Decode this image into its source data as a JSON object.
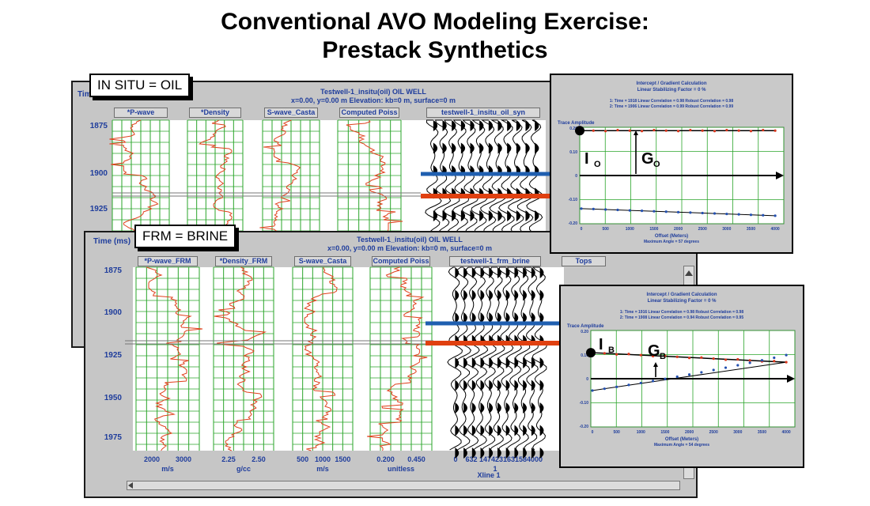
{
  "title": {
    "line1": "Conventional AVO Modeling Exercise:",
    "line2": "Prestack Synthetics"
  },
  "insitu_window": {
    "label": "IN SITU = OIL",
    "time_axis": "Time",
    "header_line1": "Testwell-1_insitu(oil) OIL WELL",
    "header_line2": "x=0.00, y=0.00 m Elevation: kb=0 m, surface=0 m",
    "tracks": [
      "*P-wave",
      "*Density",
      "S-wave_Casta",
      "Computed Poiss",
      "testwell-1_insitu_oil_syn"
    ],
    "ticks": [
      "1875",
      "1900",
      "1925"
    ]
  },
  "frm_window": {
    "label": "FRM = BRINE",
    "time_axis": "Time (ms)",
    "header_line1": "Testwell-1_insitu(oil) OIL WELL",
    "header_line2": "x=0.00, y=0.00 m Elevation: kb=0 m, surface=0 m",
    "tracks": [
      "*P-wave_FRM",
      "*Density_FRM",
      "S-wave_Casta",
      "Computed Poiss",
      "testwell-1_frm_brine",
      "Tops"
    ],
    "ticks": [
      "1875",
      "1900",
      "1925",
      "1950",
      "1975"
    ],
    "bottom_axes": [
      {
        "ticks": [
          "2000",
          "3000"
        ],
        "unit": "m/s"
      },
      {
        "ticks": [
          "2.25",
          "2.50"
        ],
        "unit": "g/cc"
      },
      {
        "ticks": [
          "500",
          "1000",
          "1500"
        ],
        "unit": "m/s"
      },
      {
        "ticks": [
          "0.200",
          "0.450"
        ],
        "unit": "unitless"
      },
      {
        "ticks": [
          "0",
          "632",
          "1474",
          "2316",
          "3158",
          "4000"
        ],
        "unit": "1"
      }
    ],
    "xline_label": "Xline 1"
  },
  "oil_panel": {
    "title1": "Intercept / Gradient Calculation",
    "title2": "Linear Stabilizing Factor = 0 %",
    "stat1": "1: Time = 1918   Linear Correlation = 0.98   Robust Correlation = 0.98",
    "stat2": "2: Time = 1906   Linear Correlation = 0.99   Robust Correlation = 0.99",
    "ylabel": "Trace Amplitude",
    "yticks": [
      "0.20",
      "0.10",
      "0",
      "-0.10",
      "-0.20"
    ],
    "xticks": [
      "0",
      "500",
      "1000",
      "1500",
      "2000",
      "2500",
      "3000",
      "3500",
      "4000"
    ],
    "xlabel": "Offset (Meters)",
    "maxangle": "Maximum Angle = 57 degrees",
    "intercept_label": "I",
    "intercept_sub": "O",
    "gradient_label": "G",
    "gradient_sub": "O"
  },
  "brine_panel": {
    "title1": "Intercept / Gradient Calculation",
    "title2": "Linear Stabilizing Factor = 0 %",
    "stat1": "1: Time = 1916   Linear Correlation = 0.98   Robust Correlation = 0.98",
    "stat2": "2: Time = 1908   Linear Correlation = 0.94   Robust Correlation = 0.95",
    "ylabel": "Trace Amplitude",
    "yticks": [
      "0.20",
      "0.10",
      "0",
      "-0.10",
      "-0.20"
    ],
    "xticks": [
      "0",
      "500",
      "1000",
      "1500",
      "2000",
      "2500",
      "3000",
      "3500",
      "4000"
    ],
    "xlabel": "Offset (Meters)",
    "maxangle": "Maximum Angle = 54 degrees",
    "intercept_label": "I",
    "intercept_sub": "B",
    "gradient_label": "G",
    "gradient_sub": "B"
  },
  "colors": {
    "log": "#e0401c",
    "grid": "#2aa52a",
    "text": "#1f3d9c",
    "marker_blue": "#1f5fb0",
    "marker_red": "#e04010",
    "series_red": "#d9361c",
    "series_blue": "#2350b0"
  },
  "icons": {
    "scroll_up": "triangle-up",
    "scroll_left": "triangle-left",
    "scroll_right": "triangle-right"
  }
}
